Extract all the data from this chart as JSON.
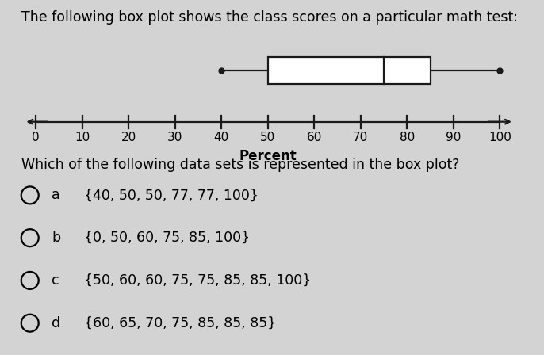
{
  "title": "The following box plot shows the class scores on a particular math test:",
  "question": "Which of the following data sets is represented in the box plot?",
  "options": [
    {
      "label": "a",
      "text": "{40, 50, 50, 77, 77, 100}"
    },
    {
      "label": "b",
      "text": "{0, 50, 60, 75, 85, 100}"
    },
    {
      "label": "c",
      "text": "{50, 60, 60, 75, 75, 85, 85, 100}"
    },
    {
      "label": "d",
      "text": "{60, 65, 70, 75, 85, 85, 85}"
    }
  ],
  "boxplot": {
    "min": 40,
    "q1": 50,
    "median": 75,
    "q3": 85,
    "max": 100
  },
  "axis_min": 0,
  "axis_max": 100,
  "axis_ticks": [
    0,
    10,
    20,
    30,
    40,
    50,
    60,
    70,
    80,
    90,
    100
  ],
  "xlabel": "Percent",
  "bg_color": "#d3d3d3",
  "box_color": "#ffffff",
  "box_edge_color": "#1a1a1a",
  "line_color": "#1a1a1a",
  "title_fontsize": 12.5,
  "question_fontsize": 12.5,
  "option_fontsize": 12.5,
  "tick_fontsize": 11
}
